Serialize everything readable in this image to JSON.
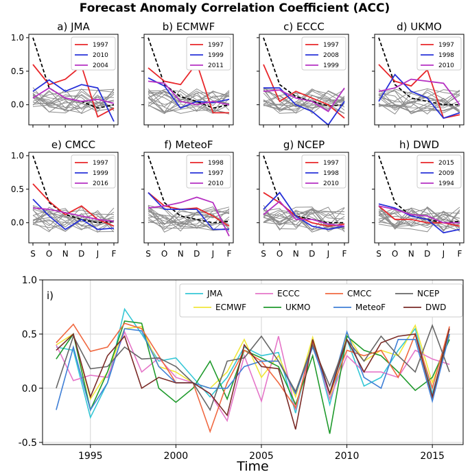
{
  "figure_title": "Forecast Anomaly Correlation Coefficient (ACC)",
  "colors": {
    "top_red": "#e8262a",
    "top_blue": "#2630d8",
    "top_magenta": "#b52fc2",
    "gray": "#8c8c8c",
    "mean_dash": "#000000"
  },
  "chart_data": [
    {
      "type": "line",
      "panel": "a) JMA",
      "categories": [
        "S",
        "O",
        "N",
        "D",
        "J",
        "F"
      ],
      "ylim": [
        -0.3,
        1.05
      ],
      "yticks": [
        "1.0",
        "0.5",
        "0.0"
      ],
      "dashed_mean": [
        1.0,
        0.25,
        0.1,
        0.05,
        -0.05,
        0.0
      ],
      "series": [
        {
          "name": "1997",
          "color": "#e8262a",
          "values": [
            0.6,
            0.3,
            0.38,
            0.58,
            -0.18,
            -0.05
          ]
        },
        {
          "name": "2010",
          "color": "#2630d8",
          "values": [
            0.2,
            0.37,
            0.2,
            0.3,
            0.25,
            -0.25
          ]
        },
        {
          "name": "2004",
          "color": "#b52fc2",
          "values": [
            0.1,
            0.25,
            0.1,
            0.05,
            0.08,
            0.02
          ]
        }
      ]
    },
    {
      "type": "line",
      "panel": "b) ECMWF",
      "categories": [
        "S",
        "O",
        "N",
        "D",
        "J",
        "F"
      ],
      "ylim": [
        -0.3,
        1.05
      ],
      "yticks": [],
      "dashed_mean": [
        1.0,
        0.3,
        0.12,
        0.05,
        -0.05,
        0.0
      ],
      "series": [
        {
          "name": "1997",
          "color": "#e8262a",
          "values": [
            0.55,
            0.35,
            0.3,
            0.62,
            -0.12,
            -0.12
          ]
        },
        {
          "name": "1999",
          "color": "#2630d8",
          "values": [
            0.4,
            0.28,
            -0.05,
            0.05,
            0.03,
            0.08
          ]
        },
        {
          "name": "2011",
          "color": "#b52fc2",
          "values": [
            0.35,
            0.32,
            0.05,
            0.0,
            0.05,
            0.0
          ]
        }
      ]
    },
    {
      "type": "line",
      "panel": "c) ECCC",
      "categories": [
        "S",
        "O",
        "N",
        "D",
        "J",
        "F"
      ],
      "ylim": [
        -0.3,
        1.05
      ],
      "yticks": [],
      "dashed_mean": [
        1.0,
        0.3,
        0.12,
        0.05,
        -0.02,
        0.0
      ],
      "series": [
        {
          "name": "1997",
          "color": "#e8262a",
          "values": [
            0.6,
            0.05,
            0.2,
            0.1,
            0.0,
            -0.2
          ]
        },
        {
          "name": "2008",
          "color": "#2630d8",
          "values": [
            0.25,
            0.25,
            0.0,
            -0.1,
            -0.3,
            0.05
          ]
        },
        {
          "name": "1999",
          "color": "#b52fc2",
          "values": [
            0.2,
            0.22,
            0.1,
            0.05,
            -0.1,
            0.25
          ]
        }
      ]
    },
    {
      "type": "line",
      "panel": "d) UKMO",
      "categories": [
        "S",
        "O",
        "N",
        "D",
        "J",
        "F"
      ],
      "ylim": [
        -0.3,
        1.05
      ],
      "yticks": [],
      "dashed_mean": [
        1.0,
        0.3,
        0.1,
        0.05,
        0.0,
        0.0
      ],
      "series": [
        {
          "name": "1997",
          "color": "#e8262a",
          "values": [
            0.6,
            0.35,
            0.28,
            0.52,
            -0.2,
            -0.15
          ]
        },
        {
          "name": "1998",
          "color": "#2630d8",
          "values": [
            0.05,
            0.45,
            0.2,
            0.1,
            -0.2,
            -0.12
          ]
        },
        {
          "name": "2010",
          "color": "#b52fc2",
          "values": [
            0.2,
            0.25,
            0.38,
            0.35,
            0.32,
            0.0
          ]
        }
      ]
    },
    {
      "type": "line",
      "panel": "e) CMCC",
      "categories": [
        "S",
        "O",
        "N",
        "D",
        "J",
        "F"
      ],
      "ylim": [
        -0.3,
        1.05
      ],
      "yticks": [
        "1.0",
        "0.5",
        "0.0"
      ],
      "dashed_mean": [
        1.0,
        0.3,
        0.12,
        0.05,
        0.0,
        0.02
      ],
      "series": [
        {
          "name": "1997",
          "color": "#e8262a",
          "values": [
            0.58,
            0.32,
            0.12,
            0.25,
            0.05,
            -0.05
          ]
        },
        {
          "name": "1999",
          "color": "#2630d8",
          "values": [
            0.35,
            0.1,
            -0.1,
            0.05,
            -0.1,
            -0.08
          ]
        },
        {
          "name": "2016",
          "color": "#b52fc2",
          "values": [
            0.22,
            0.2,
            0.15,
            0.1,
            0.05,
            0.02
          ]
        }
      ]
    },
    {
      "type": "line",
      "panel": "f) MeteoF",
      "categories": [
        "S",
        "O",
        "N",
        "D",
        "J",
        "F"
      ],
      "ylim": [
        -0.3,
        1.05
      ],
      "yticks": [],
      "dashed_mean": [
        1.0,
        0.3,
        0.1,
        0.05,
        0.0,
        0.02
      ],
      "series": [
        {
          "name": "1998",
          "color": "#e8262a",
          "values": [
            0.45,
            0.25,
            0.2,
            0.22,
            0.1,
            -0.05
          ]
        },
        {
          "name": "1997",
          "color": "#2630d8",
          "values": [
            0.45,
            0.2,
            0.2,
            0.2,
            -0.1,
            -0.1
          ]
        },
        {
          "name": "2010",
          "color": "#b52fc2",
          "values": [
            0.22,
            0.25,
            0.3,
            0.38,
            0.3,
            -0.2
          ]
        }
      ]
    },
    {
      "type": "line",
      "panel": "g) NCEP",
      "categories": [
        "S",
        "O",
        "N",
        "D",
        "J",
        "F"
      ],
      "ylim": [
        -0.3,
        1.05
      ],
      "yticks": [],
      "dashed_mean": [
        1.0,
        0.3,
        0.1,
        0.05,
        0.0,
        0.0
      ],
      "series": [
        {
          "name": "1997",
          "color": "#e8262a",
          "values": [
            0.45,
            0.3,
            0.1,
            0.0,
            -0.05,
            -0.02
          ]
        },
        {
          "name": "1998",
          "color": "#2630d8",
          "values": [
            0.2,
            0.45,
            0.1,
            -0.05,
            -0.1,
            -0.05
          ]
        },
        {
          "name": "2010",
          "color": "#b52fc2",
          "values": [
            0.12,
            0.32,
            0.05,
            0.05,
            -0.02,
            -0.05
          ]
        }
      ]
    },
    {
      "type": "line",
      "panel": "h) DWD",
      "categories": [
        "S",
        "O",
        "N",
        "D",
        "J",
        "F"
      ],
      "ylim": [
        -0.3,
        1.05
      ],
      "yticks": [],
      "dashed_mean": [
        1.0,
        0.3,
        0.1,
        0.05,
        0.0,
        0.02
      ],
      "series": [
        {
          "name": "2015",
          "color": "#e8262a",
          "values": [
            0.25,
            0.05,
            0.05,
            0.0,
            0.0,
            -0.05
          ]
        },
        {
          "name": "2009",
          "color": "#2630d8",
          "values": [
            0.28,
            0.22,
            0.1,
            0.05,
            -0.15,
            -0.1
          ]
        },
        {
          "name": "1994",
          "color": "#b52fc2",
          "values": [
            0.25,
            0.2,
            0.12,
            0.1,
            0.0,
            0.0
          ]
        }
      ]
    },
    {
      "type": "line",
      "panel": "i)",
      "xlabel": "Time",
      "x": [
        1993,
        1994,
        1995,
        1996,
        1997,
        1998,
        1999,
        2000,
        2001,
        2002,
        2003,
        2004,
        2005,
        2006,
        2007,
        2008,
        2009,
        2010,
        2011,
        2012,
        2013,
        2014,
        2015,
        2016
      ],
      "xlim": [
        1992.2,
        2016.8
      ],
      "ylim": [
        -0.52,
        1.0
      ],
      "xticks": [
        "1995",
        "2000",
        "2005",
        "2010",
        "2015"
      ],
      "yticks": [
        "1.0",
        "0.5",
        "0.0",
        "-0.5"
      ],
      "legend_position": "top-right",
      "series": [
        {
          "name": "JMA",
          "color": "#35c7d6",
          "values": [
            0.38,
            0.35,
            -0.27,
            0.05,
            0.73,
            0.5,
            0.25,
            0.28,
            0.1,
            -0.08,
            0.1,
            0.38,
            0.3,
            0.33,
            -0.23,
            0.45,
            -0.15,
            0.45,
            0.02,
            0.1,
            0.35,
            0.55,
            -0.05,
            0.5
          ]
        },
        {
          "name": "ECMWF",
          "color": "#f0e63a",
          "values": [
            0.4,
            0.5,
            -0.1,
            0.15,
            0.55,
            0.57,
            0.2,
            0.15,
            0.05,
            0.0,
            0.15,
            0.45,
            0.1,
            0.3,
            -0.08,
            0.47,
            -0.1,
            0.5,
            0.25,
            0.35,
            0.3,
            0.58,
            0.05,
            0.48
          ]
        },
        {
          "name": "ECCC",
          "color": "#e575c8",
          "values": [
            0.4,
            0.07,
            0.12,
            0.1,
            0.52,
            0.15,
            0.28,
            0.1,
            0.05,
            -0.05,
            -0.3,
            0.3,
            -0.12,
            0.48,
            -0.2,
            0.42,
            -0.1,
            0.3,
            0.15,
            0.15,
            0.1,
            0.35,
            0.27,
            0.22
          ]
        },
        {
          "name": "UKMO",
          "color": "#1f9a2c",
          "values": [
            0.27,
            0.5,
            -0.2,
            0.15,
            0.62,
            0.6,
            0.0,
            -0.13,
            0.0,
            0.25,
            -0.1,
            0.35,
            0.28,
            0.2,
            -0.15,
            0.3,
            -0.42,
            0.48,
            0.35,
            0.3,
            0.15,
            -0.02,
            0.1,
            0.45
          ]
        },
        {
          "name": "CMCC",
          "color": "#f06840",
          "values": [
            0.42,
            0.59,
            0.34,
            0.38,
            0.6,
            0.55,
            0.3,
            0.05,
            0.05,
            -0.4,
            0.05,
            0.35,
            0.25,
            0.05,
            -0.18,
            0.43,
            -0.05,
            0.35,
            0.3,
            0.35,
            0.1,
            0.5,
            0.0,
            0.57
          ]
        },
        {
          "name": "MeteoF",
          "color": "#3f7fd6",
          "values": [
            -0.2,
            0.38,
            -0.2,
            0.05,
            0.55,
            0.53,
            0.2,
            0.05,
            0.05,
            0.0,
            0.0,
            0.2,
            0.25,
            0.25,
            -0.05,
            0.38,
            -0.05,
            0.52,
            0.1,
            0.0,
            0.45,
            0.45,
            -0.12,
            0.5
          ]
        },
        {
          "name": "NCEP",
          "color": "#666666",
          "values": [
            0.0,
            0.48,
            0.18,
            0.2,
            0.38,
            0.27,
            0.28,
            0.2,
            0.05,
            -0.2,
            0.25,
            0.28,
            0.48,
            0.25,
            -0.03,
            0.4,
            0.02,
            0.45,
            0.25,
            0.48,
            0.3,
            0.15,
            0.58,
            0.15
          ]
        },
        {
          "name": "DWD",
          "color": "#7a2a26",
          "values": [
            0.35,
            0.5,
            -0.08,
            0.3,
            0.48,
            0.0,
            0.1,
            0.05,
            0.05,
            -0.05,
            -0.25,
            0.4,
            0.2,
            0.18,
            -0.38,
            0.45,
            -0.05,
            0.45,
            0.15,
            0.42,
            0.48,
            0.5,
            -0.08,
            0.55
          ]
        }
      ]
    }
  ]
}
